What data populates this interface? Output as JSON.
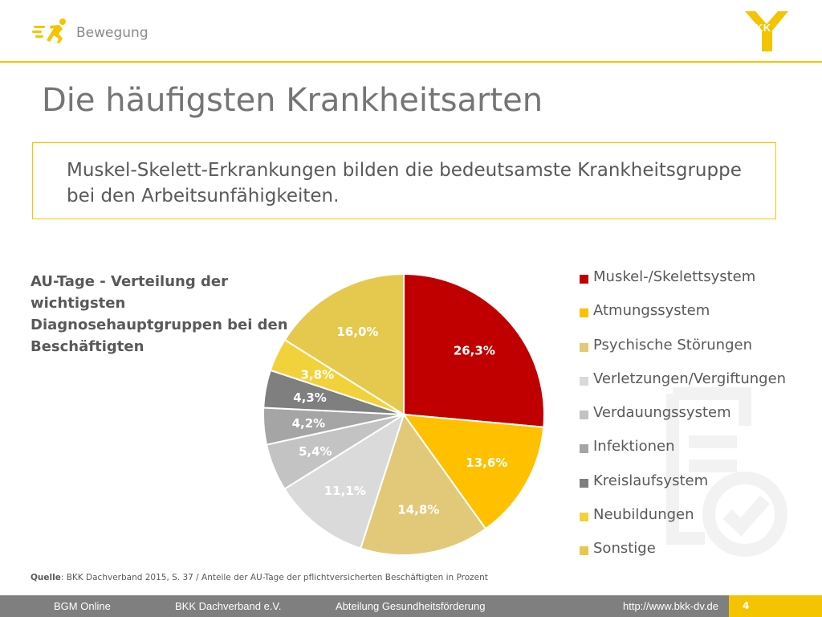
{
  "header": {
    "section": "Bewegung",
    "logo_text": "BKK"
  },
  "title": "Die häufigsten Krankheitsarten",
  "callout": "Muskel-Skelett-Erkrankungen bilden die bedeutsamste Krankheitsgruppe bei den Arbeitsunfähigkeiten.",
  "colors": {
    "accent": "#f5c400",
    "footer": "#7f7f7f",
    "text": "#595959"
  },
  "chart_data": {
    "type": "pie",
    "title": "AU-Tage - Verteilung der wichtigsten Diagnosehauptgruppen bei den Beschäftigten",
    "legend_position": "right",
    "slices": [
      {
        "name": "Muskel-/Skelettsystem",
        "value": 26.3,
        "label": "26,3%",
        "color": "#c00000"
      },
      {
        "name": "Atmungssystem",
        "value": 13.6,
        "label": "13,6%",
        "color": "#ffc000"
      },
      {
        "name": "Psychische Störungen",
        "value": 14.8,
        "label": "14,8%",
        "color": "#e2c97a"
      },
      {
        "name": "Verletzungen/Vergiftungen",
        "value": 11.1,
        "label": "11,1%",
        "color": "#dadada"
      },
      {
        "name": "Verdauungssystem",
        "value": 5.4,
        "label": "5,4%",
        "color": "#c3c3c3"
      },
      {
        "name": "Infektionen",
        "value": 4.2,
        "label": "4,2%",
        "color": "#a5a5a5"
      },
      {
        "name": "Kreislaufsystem",
        "value": 4.3,
        "label": "4,3%",
        "color": "#7f7f7f"
      },
      {
        "name": "Neubildungen",
        "value": 3.8,
        "label": "3,8%",
        "color": "#f1d23a"
      },
      {
        "name": "Sonstige",
        "value": 16.0,
        "label": "16,0%",
        "color": "#e5c94e"
      }
    ]
  },
  "source": {
    "label": "Quelle",
    "text": ": BKK Dachverband 2015, S. 37 / Anteile der AU-Tage der pflichtversicherten Beschäftigten in Prozent"
  },
  "footer": {
    "items": [
      "BGM Online",
      "BKK Dachverband e.V.",
      "Abteilung Gesundheitsförderung",
      "http://www.bkk-dv.de"
    ],
    "page": "4"
  }
}
